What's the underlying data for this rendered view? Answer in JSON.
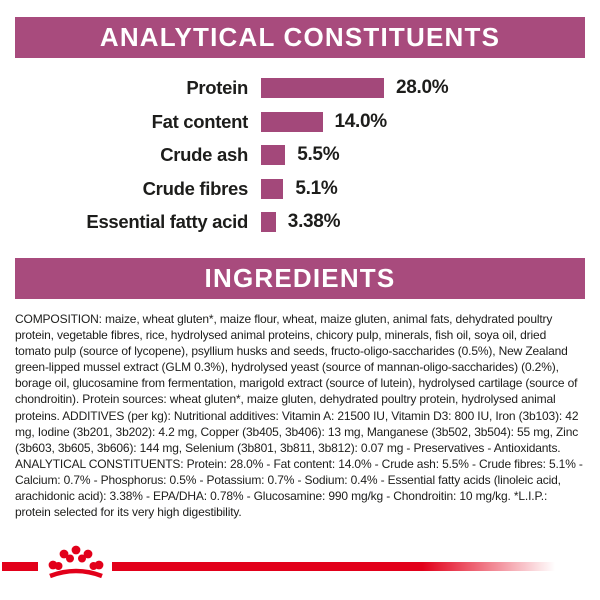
{
  "headers": {
    "analytical": "ANALYTICAL CONSTITUENTS",
    "ingredients": "INGREDIENTS"
  },
  "colors": {
    "header_bg": "#a84b7d",
    "bar": "#a3487a",
    "body_text": "#1d1d1b",
    "logo_red": "#e2001a"
  },
  "chart_data": {
    "type": "bar",
    "orientation": "horizontal",
    "title": "ANALYTICAL CONSTITUENTS",
    "categories": [
      "Protein",
      "Fat content",
      "Crude ash",
      "Crude fibres",
      "Essential fatty acid"
    ],
    "values": [
      28.0,
      14.0,
      5.5,
      5.1,
      3.38
    ],
    "value_labels": [
      "28.0%",
      "14.0%",
      "5.5%",
      "5.1%",
      "3.38%"
    ],
    "unit": "%",
    "xlim": [
      0,
      28
    ],
    "grid": false,
    "legend": false,
    "bar_color": "#a3487a"
  },
  "composition_text": "COMPOSITION: maize, wheat gluten*, maize flour, wheat, maize gluten, animal fats, dehydrated poultry protein, vegetable fibres, rice, hydrolysed animal proteins, chicory pulp, minerals, fish oil, soya oil, dried tomato pulp (source of lycopene), psyllium husks and seeds, fructo-oligo-saccharides (0.5%), New Zealand green-lipped mussel extract (GLM 0.3%), hydrolysed yeast (source of mannan-oligo-saccharides) (0.2%), borage oil, glucosamine from fermentation, marigold extract (source of lutein), hydrolysed cartilage (source of chondroitin). Protein sources: wheat gluten*, maize gluten, dehydrated poultry protein, hydrolysed animal proteins. ADDITIVES (per kg): Nutritional additives: Vitamin A: 21500 IU, Vitamin D3: 800 IU, Iron (3b103): 42 mg, Iodine (3b201, 3b202): 4.2 mg, Copper (3b405, 3b406): 13 mg, Manganese (3b502, 3b504): 55 mg, Zinc (3b603, 3b605, 3b606): 144 mg, Selenium (3b801, 3b811, 3b812): 0.07 mg - Preservatives - Antioxidants. ANALYTICAL CONSTITUENTS: Protein: 28.0% - Fat content: 14.0% - Crude ash: 5.5% - Crude fibres: 5.1% - Calcium: 0.7% - Phosphorus: 0.5% - Potassium: 0.7% - Sodium: 0.4% - Essential fatty acids (linoleic acid, arachidonic acid): 3.38% - EPA/DHA: 0.78% - Glucosamine: 990 mg/kg - Chondroitin: 10 mg/kg. *L.I.P.: protein selected for its very high digestibility.",
  "logo": {
    "brand": "royal-canin-crown"
  }
}
